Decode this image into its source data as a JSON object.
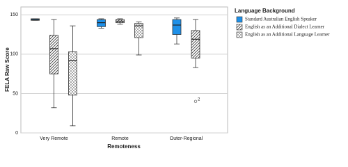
{
  "chart_data": {
    "type": "box",
    "y_label": "FELA Raw Score",
    "x_label": "Remoteness",
    "legend_title": "Language Background",
    "categories": [
      "Very Remote",
      "Remote",
      "Outer-Regional"
    ],
    "ylim": [
      0,
      160
    ],
    "yticks": [
      0,
      50,
      100,
      150
    ],
    "grid": true,
    "legend": "right",
    "series": [
      {
        "name": "Standard Australian English Speaker",
        "color": "#1e90e8",
        "pattern": "solid",
        "values": [
          [
            143,
            143,
            144,
            145,
            145
          ],
          [
            133,
            135,
            140,
            144,
            145
          ],
          [
            113,
            125,
            137,
            144,
            146
          ]
        ]
      },
      {
        "name": "English as an Additional Dialect Learner",
        "color": "#333333",
        "pattern": "diagonal",
        "values": [
          [
            32,
            75,
            107,
            124,
            144
          ],
          [
            138,
            140,
            142,
            144,
            145
          ],
          [
            83,
            95,
            119,
            130,
            144
          ]
        ],
        "outliers": [
          [],
          [],
          [
            {
              "value": 40,
              "label": "2"
            }
          ]
        ]
      },
      {
        "name": "English as an Additional Language Learner",
        "color": "#333333",
        "pattern": "crosshatch",
        "values": [
          [
            9,
            48,
            92,
            103,
            136
          ],
          [
            99,
            121,
            136,
            139,
            141
          ],
          null
        ]
      }
    ]
  }
}
